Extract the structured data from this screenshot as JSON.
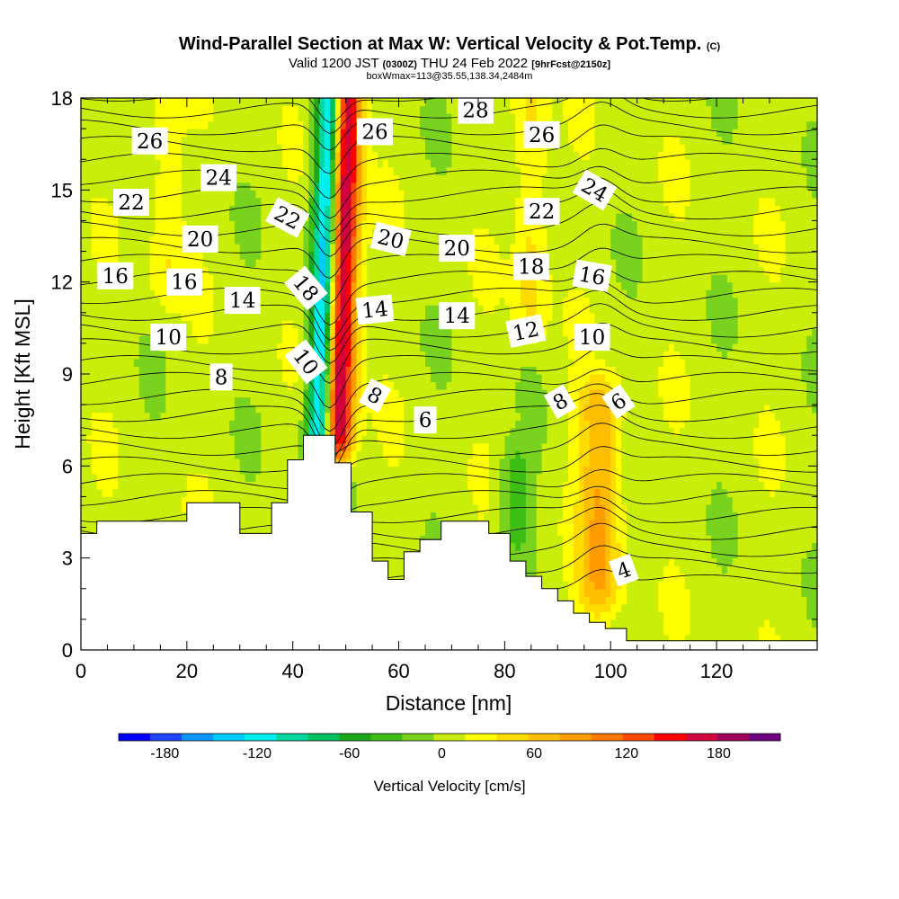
{
  "header": {
    "title_main": "Wind-Parallel Section at Max W: Vertical Velocity & Pot.Temp.",
    "title_tag": "(C)",
    "valid_prefix": "Valid 1200 JST",
    "valid_utc": "(0300Z)",
    "valid_date": "THU 24 Feb 2022",
    "forecast_tag": "[9hrFcst@2150z]",
    "box_info": "boxWmax=113@35.55,138.34,2484m"
  },
  "chart_data": {
    "type": "contour",
    "xlabel": "Distance [nm]",
    "ylabel": "Height [Kft MSL]",
    "xlim": [
      0,
      139
    ],
    "ylim": [
      0,
      18
    ],
    "x_ticks": [
      0,
      20,
      40,
      60,
      80,
      100,
      120
    ],
    "y_ticks": [
      0,
      3,
      6,
      9,
      12,
      15,
      18
    ],
    "fill_variable": "Vertical Velocity [cm/s]",
    "contour_variable": "Potential Temperature (C)",
    "colorbar": {
      "title": "Vertical Velocity [cm/s]",
      "levels": [
        -210,
        -180,
        -160,
        -140,
        -120,
        -100,
        -80,
        -60,
        -40,
        -20,
        0,
        20,
        40,
        60,
        80,
        100,
        120,
        140,
        160,
        180,
        200,
        220
      ],
      "tick_values": [
        -180,
        -120,
        -60,
        0,
        60,
        120,
        180
      ],
      "tick_labels": [
        "-180",
        "-120",
        "-60",
        "0",
        "60",
        "120",
        "180"
      ],
      "colors": [
        "#0000ff",
        "#1e46ff",
        "#0a96ff",
        "#00ccff",
        "#00eeee",
        "#00d8a0",
        "#00c060",
        "#1aa81a",
        "#3cbe14",
        "#78d21e",
        "#c8ee0a",
        "#ffff00",
        "#ffdc00",
        "#ffbe00",
        "#ff9c00",
        "#ff7800",
        "#ff4800",
        "#ff0000",
        "#d2003c",
        "#9e005a",
        "#6e0082"
      ]
    },
    "terrain_profile": [
      [
        0,
        3.8
      ],
      [
        3,
        3.8
      ],
      [
        3,
        4.2
      ],
      [
        20,
        4.2
      ],
      [
        20,
        4.8
      ],
      [
        30,
        4.8
      ],
      [
        30,
        3.8
      ],
      [
        36,
        3.8
      ],
      [
        36,
        4.8
      ],
      [
        39,
        4.8
      ],
      [
        39,
        6.2
      ],
      [
        42,
        6.2
      ],
      [
        42,
        7.0
      ],
      [
        48,
        7.0
      ],
      [
        48,
        6.1
      ],
      [
        51,
        6.1
      ],
      [
        51,
        4.5
      ],
      [
        55,
        4.5
      ],
      [
        55,
        2.9
      ],
      [
        58,
        2.9
      ],
      [
        58,
        2.3
      ],
      [
        61,
        2.3
      ],
      [
        61,
        3.2
      ],
      [
        64,
        3.2
      ],
      [
        64,
        3.6
      ],
      [
        68,
        3.6
      ],
      [
        68,
        4.2
      ],
      [
        77,
        4.2
      ],
      [
        77,
        3.8
      ],
      [
        81,
        3.8
      ],
      [
        81,
        2.9
      ],
      [
        84,
        2.9
      ],
      [
        84,
        2.4
      ],
      [
        87,
        2.4
      ],
      [
        87,
        2.0
      ],
      [
        90,
        2.0
      ],
      [
        90,
        1.6
      ],
      [
        93,
        1.6
      ],
      [
        93,
        1.2
      ],
      [
        96,
        1.2
      ],
      [
        96,
        0.9
      ],
      [
        99,
        0.9
      ],
      [
        99,
        0.7
      ],
      [
        103,
        0.7
      ],
      [
        103,
        0.3
      ],
      [
        139,
        0.3
      ]
    ],
    "vertical_velocity_features": [
      {
        "x": 45,
        "y_bottom": 7,
        "y_top": 18,
        "value": -160,
        "tilt": 0.18,
        "width": 2.4
      },
      {
        "x": 48.5,
        "y_bottom": 7,
        "y_top": 18,
        "value": 190,
        "tilt": 0.16,
        "width": 2.8
      },
      {
        "x": 98,
        "y_bottom": 2,
        "y_top": 8,
        "value": 70,
        "width": 4
      },
      {
        "x": 82,
        "y_bottom": 3.8,
        "y_top": 6,
        "value": -40,
        "width": 3
      },
      {
        "x": 16,
        "y_bottom": 12,
        "y_top": 18,
        "value": 30,
        "width": 3
      },
      {
        "x": 85,
        "y_bottom": 11,
        "y_top": 18,
        "value": 40,
        "width": 3
      }
    ],
    "contour_labels": [
      {
        "x": 13,
        "y": 16.6,
        "text": "26",
        "rot": 0
      },
      {
        "x": 26,
        "y": 15.4,
        "text": "24",
        "rot": 0
      },
      {
        "x": 9.5,
        "y": 14.6,
        "text": "22",
        "rot": 0
      },
      {
        "x": 22.5,
        "y": 13.4,
        "text": "20",
        "rot": 0
      },
      {
        "x": 6.5,
        "y": 12.2,
        "text": "16",
        "rot": 0
      },
      {
        "x": 19.5,
        "y": 12.0,
        "text": "16",
        "rot": 0
      },
      {
        "x": 30.5,
        "y": 11.4,
        "text": "14",
        "rot": 0
      },
      {
        "x": 16.5,
        "y": 10.2,
        "text": "10",
        "rot": 0
      },
      {
        "x": 26.5,
        "y": 8.9,
        "text": "8",
        "rot": 0
      },
      {
        "x": 39,
        "y": 14.1,
        "text": "22",
        "rot": 28
      },
      {
        "x": 42.5,
        "y": 11.8,
        "text": "18",
        "rot": 50
      },
      {
        "x": 42.5,
        "y": 9.4,
        "text": "10",
        "rot": 52
      },
      {
        "x": 55.5,
        "y": 16.9,
        "text": "26",
        "rot": 0
      },
      {
        "x": 58.5,
        "y": 13.4,
        "text": "20",
        "rot": 14
      },
      {
        "x": 55.5,
        "y": 11.1,
        "text": "14",
        "rot": -6
      },
      {
        "x": 55.5,
        "y": 8.3,
        "text": "8",
        "rot": 28
      },
      {
        "x": 74.5,
        "y": 17.6,
        "text": "28",
        "rot": 0
      },
      {
        "x": 71,
        "y": 13.1,
        "text": "20",
        "rot": 0
      },
      {
        "x": 71,
        "y": 10.9,
        "text": "14",
        "rot": 0
      },
      {
        "x": 87,
        "y": 16.8,
        "text": "26",
        "rot": 0
      },
      {
        "x": 87,
        "y": 14.3,
        "text": "22",
        "rot": 0
      },
      {
        "x": 85,
        "y": 12.5,
        "text": "18",
        "rot": 0
      },
      {
        "x": 84,
        "y": 10.4,
        "text": "12",
        "rot": -12
      },
      {
        "x": 65,
        "y": 7.5,
        "text": "6",
        "rot": 0
      },
      {
        "x": 97,
        "y": 15.0,
        "text": "24",
        "rot": 30
      },
      {
        "x": 96.5,
        "y": 12.2,
        "text": "16",
        "rot": 10
      },
      {
        "x": 96.5,
        "y": 10.2,
        "text": "10",
        "rot": 0
      },
      {
        "x": 90.5,
        "y": 8.1,
        "text": "8",
        "rot": -30
      },
      {
        "x": 101.5,
        "y": 8.1,
        "text": "6",
        "rot": -35
      },
      {
        "x": 102.5,
        "y": 2.6,
        "text": "4",
        "rot": -20
      }
    ]
  }
}
